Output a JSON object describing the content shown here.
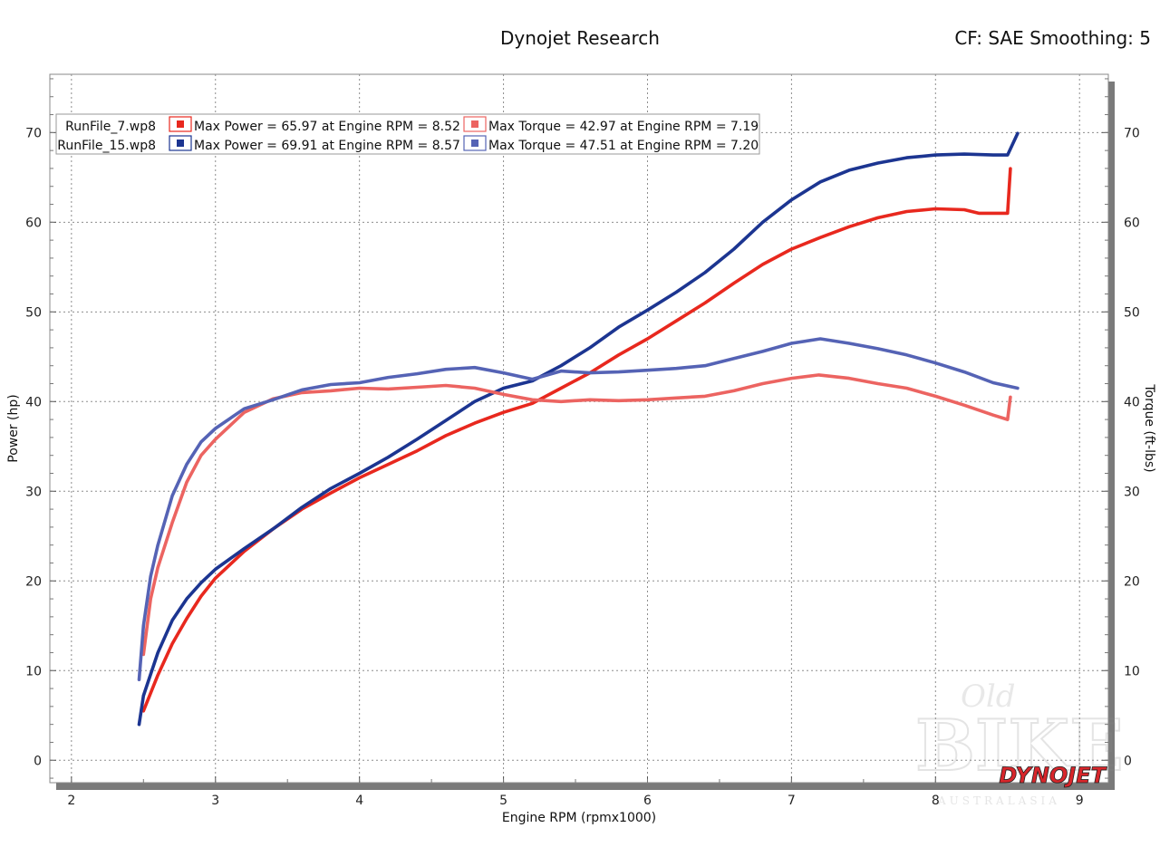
{
  "header": {
    "title": "Dynojet Research",
    "cf": "CF: SAE Smoothing: 5"
  },
  "watermark": {
    "brand": "DYNOJET",
    "logo_text": "Old BIKE AUSTRALASIA"
  },
  "colors": {
    "power_run7": "#e8281e",
    "power_run15": "#1c3591",
    "torque_run7": "#ec6461",
    "torque_run15": "#5563b5",
    "brand_red": "#d8262b"
  },
  "legend": {
    "rows": [
      {
        "file": "RunFile_7.wp8",
        "power": "Max Power = 65.97 at Engine RPM = 8.52",
        "torque": "Max Torque = 42.97 at Engine RPM = 7.19"
      },
      {
        "file": "RunFile_15.wp8",
        "power": "Max Power = 69.91 at Engine RPM = 8.57",
        "torque": "Max Torque = 47.51 at Engine RPM = 7.20"
      }
    ]
  },
  "chart_data": {
    "type": "line",
    "title": "Dynojet Research",
    "xlabel": "Engine RPM (rpmx1000)",
    "ylabel": "Power (hp)",
    "y2label": "Torque (ft-lbs)",
    "xlim": [
      1.85,
      9.2
    ],
    "ylim": [
      -2.5,
      76.5
    ],
    "y2lim": [
      -2.5,
      76.5
    ],
    "x_ticks": [
      2,
      3,
      4,
      5,
      6,
      7,
      8,
      9
    ],
    "y_ticks": [
      0,
      10,
      20,
      30,
      40,
      50,
      60,
      70
    ],
    "y2_ticks": [
      0,
      10,
      20,
      30,
      40,
      50,
      60,
      70
    ],
    "grid": true,
    "legend_position": "top-left",
    "series": [
      {
        "name": "RunFile_7.wp8 Power",
        "axis": "left",
        "color": "#e8281e",
        "x": [
          2.5,
          2.6,
          2.7,
          2.8,
          2.9,
          3.0,
          3.2,
          3.4,
          3.6,
          3.8,
          4.0,
          4.2,
          4.4,
          4.6,
          4.8,
          5.0,
          5.2,
          5.4,
          5.6,
          5.8,
          6.0,
          6.2,
          6.4,
          6.6,
          6.8,
          7.0,
          7.2,
          7.4,
          7.6,
          7.8,
          8.0,
          8.2,
          8.3,
          8.4,
          8.5,
          8.52
        ],
        "y": [
          5.5,
          9.5,
          13.0,
          15.8,
          18.3,
          20.3,
          23.3,
          25.8,
          28.0,
          29.8,
          31.5,
          33.0,
          34.5,
          36.2,
          37.6,
          38.8,
          39.8,
          41.5,
          43.2,
          45.2,
          47.0,
          49.0,
          51.0,
          53.2,
          55.3,
          57.0,
          58.3,
          59.5,
          60.5,
          61.2,
          61.5,
          61.4,
          61.0,
          61.0,
          61.0,
          65.97
        ]
      },
      {
        "name": "RunFile_15.wp8 Power",
        "axis": "left",
        "color": "#1c3591",
        "x": [
          2.47,
          2.5,
          2.6,
          2.7,
          2.8,
          2.9,
          3.0,
          3.2,
          3.4,
          3.6,
          3.8,
          4.0,
          4.2,
          4.4,
          4.6,
          4.8,
          5.0,
          5.2,
          5.4,
          5.6,
          5.8,
          6.0,
          6.2,
          6.4,
          6.6,
          6.8,
          7.0,
          7.2,
          7.4,
          7.6,
          7.8,
          8.0,
          8.2,
          8.4,
          8.5,
          8.57
        ],
        "y": [
          4.0,
          7.2,
          12.0,
          15.6,
          18.0,
          19.8,
          21.3,
          23.6,
          25.8,
          28.2,
          30.3,
          32.0,
          33.8,
          35.8,
          37.9,
          40.0,
          41.5,
          42.3,
          44.0,
          46.0,
          48.3,
          50.2,
          52.2,
          54.4,
          57.0,
          60.0,
          62.5,
          64.5,
          65.8,
          66.6,
          67.2,
          67.5,
          67.6,
          67.5,
          67.5,
          69.91
        ]
      },
      {
        "name": "RunFile_7.wp8 Torque",
        "axis": "right",
        "color": "#ec6461",
        "x": [
          2.5,
          2.55,
          2.6,
          2.7,
          2.8,
          2.9,
          3.0,
          3.2,
          3.4,
          3.6,
          3.8,
          4.0,
          4.2,
          4.4,
          4.6,
          4.8,
          5.0,
          5.2,
          5.4,
          5.6,
          5.8,
          6.0,
          6.2,
          6.4,
          6.6,
          6.8,
          7.0,
          7.19,
          7.4,
          7.6,
          7.8,
          8.0,
          8.2,
          8.4,
          8.5,
          8.52
        ],
        "y": [
          11.8,
          18.0,
          21.5,
          26.5,
          31.0,
          34.0,
          35.8,
          38.8,
          40.3,
          41.0,
          41.2,
          41.5,
          41.4,
          41.6,
          41.8,
          41.5,
          40.8,
          40.2,
          40.0,
          40.2,
          40.1,
          40.2,
          40.4,
          40.6,
          41.2,
          42.0,
          42.6,
          42.97,
          42.6,
          42.0,
          41.5,
          40.6,
          39.6,
          38.5,
          38.0,
          40.5
        ]
      },
      {
        "name": "RunFile_15.wp8 Torque",
        "axis": "right",
        "color": "#5563b5",
        "x": [
          2.47,
          2.5,
          2.55,
          2.6,
          2.7,
          2.8,
          2.9,
          3.0,
          3.2,
          3.4,
          3.6,
          3.8,
          4.0,
          4.2,
          4.4,
          4.6,
          4.8,
          5.0,
          5.2,
          5.4,
          5.6,
          5.8,
          6.0,
          6.2,
          6.4,
          6.6,
          6.8,
          7.0,
          7.2,
          7.4,
          7.6,
          7.8,
          8.0,
          8.2,
          8.4,
          8.57
        ],
        "y": [
          9.0,
          15.0,
          20.5,
          24.0,
          29.5,
          33.0,
          35.5,
          37.0,
          39.2,
          40.2,
          41.3,
          41.9,
          42.1,
          42.7,
          43.1,
          43.6,
          43.8,
          43.2,
          42.5,
          43.4,
          43.2,
          43.3,
          43.5,
          43.7,
          44.0,
          44.8,
          45.6,
          46.5,
          47.0,
          46.5,
          45.9,
          45.2,
          44.3,
          43.3,
          42.1,
          41.5
        ]
      }
    ]
  }
}
